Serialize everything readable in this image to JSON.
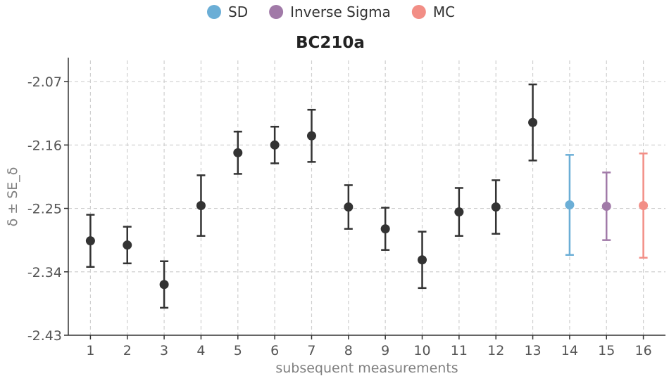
{
  "chart_data": {
    "type": "scatter",
    "title": "BC210a",
    "xlabel": "subsequent measurements",
    "ylabel": "δ ± SE_δ",
    "ylim": [
      -2.43,
      -2.04
    ],
    "xlim": [
      0.4,
      16.6
    ],
    "yticks": [
      -2.07,
      -2.16,
      -2.25,
      -2.34,
      -2.43
    ],
    "ytick_labels": [
      "-2.07",
      "-2.16",
      "-2.25",
      "-2.34",
      "-2.43"
    ],
    "xticks": [
      1,
      2,
      3,
      4,
      5,
      6,
      7,
      8,
      9,
      10,
      11,
      12,
      13,
      14,
      15,
      16
    ],
    "grid": true,
    "legend_position": "top-center",
    "legend": [
      {
        "name": "SD",
        "color": "#6baed6"
      },
      {
        "name": "Inverse Sigma",
        "color": "#a17aa8"
      },
      {
        "name": "MC",
        "color": "#f28e86"
      }
    ],
    "series": [
      {
        "name": "measurements",
        "color": "#333333",
        "points": [
          {
            "x": 1,
            "y": -2.296,
            "lo": -2.333,
            "hi": -2.259
          },
          {
            "x": 2,
            "y": -2.302,
            "lo": -2.328,
            "hi": -2.276
          },
          {
            "x": 3,
            "y": -2.358,
            "lo": -2.391,
            "hi": -2.325
          },
          {
            "x": 4,
            "y": -2.246,
            "lo": -2.289,
            "hi": -2.203
          },
          {
            "x": 5,
            "y": -2.171,
            "lo": -2.201,
            "hi": -2.141
          },
          {
            "x": 6,
            "y": -2.16,
            "lo": -2.186,
            "hi": -2.134
          },
          {
            "x": 7,
            "y": -2.147,
            "lo": -2.184,
            "hi": -2.11
          },
          {
            "x": 8,
            "y": -2.248,
            "lo": -2.279,
            "hi": -2.217
          },
          {
            "x": 9,
            "y": -2.279,
            "lo": -2.309,
            "hi": -2.249
          },
          {
            "x": 10,
            "y": -2.323,
            "lo": -2.363,
            "hi": -2.283
          },
          {
            "x": 11,
            "y": -2.255,
            "lo": -2.289,
            "hi": -2.221
          },
          {
            "x": 12,
            "y": -2.248,
            "lo": -2.286,
            "hi": -2.21
          },
          {
            "x": 13,
            "y": -2.128,
            "lo": -2.182,
            "hi": -2.074
          }
        ]
      },
      {
        "name": "SD",
        "color": "#6baed6",
        "points": [
          {
            "x": 14,
            "y": -2.245,
            "lo": -2.316,
            "hi": -2.174
          }
        ]
      },
      {
        "name": "Inverse Sigma",
        "color": "#a17aa8",
        "points": [
          {
            "x": 15,
            "y": -2.247,
            "lo": -2.295,
            "hi": -2.199
          }
        ]
      },
      {
        "name": "MC",
        "color": "#f28e86",
        "points": [
          {
            "x": 16,
            "y": -2.246,
            "lo": -2.32,
            "hi": -2.172
          }
        ]
      }
    ]
  }
}
